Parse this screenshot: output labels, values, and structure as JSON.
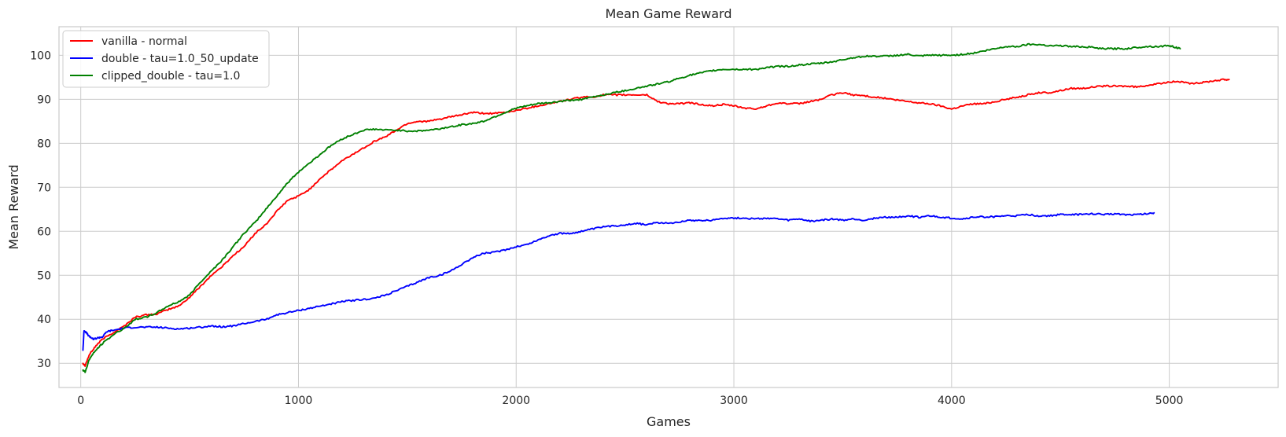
{
  "chart_data": {
    "type": "line",
    "title": "Mean Game Reward",
    "xlabel": "Games",
    "ylabel": "Mean Reward",
    "xlim": [
      -100,
      5500
    ],
    "ylim": [
      24.5,
      106.5
    ],
    "xticks": [
      0,
      1000,
      2000,
      3000,
      4000,
      5000
    ],
    "yticks": [
      30,
      40,
      50,
      60,
      70,
      80,
      90,
      100
    ],
    "grid": true,
    "legend_position": "top-left",
    "series": [
      {
        "name": "vanilla - normal",
        "color": "#ff0000",
        "points": [
          [
            10,
            30
          ],
          [
            20,
            29.5
          ],
          [
            40,
            32
          ],
          [
            70,
            34
          ],
          [
            100,
            35.5
          ],
          [
            150,
            37
          ],
          [
            200,
            38.5
          ],
          [
            250,
            40.5
          ],
          [
            300,
            41
          ],
          [
            350,
            41.2
          ],
          [
            400,
            42.2
          ],
          [
            450,
            43
          ],
          [
            500,
            45
          ],
          [
            550,
            47.5
          ],
          [
            600,
            50
          ],
          [
            650,
            52
          ],
          [
            700,
            54.5
          ],
          [
            750,
            56.5
          ],
          [
            800,
            59.5
          ],
          [
            850,
            61.5
          ],
          [
            900,
            64.5
          ],
          [
            950,
            67
          ],
          [
            1000,
            68
          ],
          [
            1050,
            69.5
          ],
          [
            1100,
            72
          ],
          [
            1150,
            74
          ],
          [
            1200,
            76
          ],
          [
            1250,
            77.5
          ],
          [
            1300,
            79
          ],
          [
            1350,
            80.5
          ],
          [
            1400,
            81.5
          ],
          [
            1450,
            83
          ],
          [
            1500,
            84.5
          ],
          [
            1550,
            85
          ],
          [
            1600,
            85
          ],
          [
            1650,
            85.5
          ],
          [
            1700,
            86
          ],
          [
            1750,
            86.5
          ],
          [
            1800,
            87
          ],
          [
            1850,
            86.8
          ],
          [
            1900,
            86.8
          ],
          [
            1950,
            87
          ],
          [
            2000,
            87.5
          ],
          [
            2050,
            88
          ],
          [
            2100,
            88.5
          ],
          [
            2150,
            89
          ],
          [
            2200,
            89.5
          ],
          [
            2250,
            90
          ],
          [
            2300,
            90.5
          ],
          [
            2350,
            90.5
          ],
          [
            2400,
            91
          ],
          [
            2450,
            91
          ],
          [
            2500,
            91
          ],
          [
            2550,
            91
          ],
          [
            2600,
            91
          ],
          [
            2650,
            89.5
          ],
          [
            2700,
            89
          ],
          [
            2750,
            89
          ],
          [
            2800,
            89.2
          ],
          [
            2850,
            88.8
          ],
          [
            2900,
            88.5
          ],
          [
            2950,
            88.8
          ],
          [
            3000,
            88.5
          ],
          [
            3050,
            88
          ],
          [
            3100,
            87.8
          ],
          [
            3150,
            88.5
          ],
          [
            3200,
            89.2
          ],
          [
            3250,
            89
          ],
          [
            3300,
            89
          ],
          [
            3350,
            89.5
          ],
          [
            3400,
            90
          ],
          [
            3450,
            91
          ],
          [
            3500,
            91.5
          ],
          [
            3550,
            91
          ],
          [
            3600,
            90.8
          ],
          [
            3650,
            90.5
          ],
          [
            3700,
            90.2
          ],
          [
            3750,
            89.8
          ],
          [
            3800,
            89.5
          ],
          [
            3850,
            89.2
          ],
          [
            3900,
            89
          ],
          [
            3950,
            88.5
          ],
          [
            4000,
            87.8
          ],
          [
            4050,
            88.5
          ],
          [
            4100,
            89
          ],
          [
            4150,
            89
          ],
          [
            4200,
            89.5
          ],
          [
            4250,
            90
          ],
          [
            4300,
            90.5
          ],
          [
            4350,
            91
          ],
          [
            4400,
            91.5
          ],
          [
            4450,
            91.5
          ],
          [
            4500,
            92
          ],
          [
            4550,
            92.5
          ],
          [
            4600,
            92.5
          ],
          [
            4650,
            92.8
          ],
          [
            4700,
            93
          ],
          [
            4750,
            93
          ],
          [
            4800,
            93
          ],
          [
            4850,
            92.8
          ],
          [
            4900,
            93.2
          ],
          [
            4950,
            93.5
          ],
          [
            5000,
            94
          ],
          [
            5050,
            94
          ],
          [
            5100,
            93.5
          ],
          [
            5150,
            93.8
          ],
          [
            5200,
            94.2
          ],
          [
            5250,
            94.5
          ],
          [
            5275,
            94.5
          ]
        ]
      },
      {
        "name": "double - tau=1.0_50_update",
        "color": "#0000ff",
        "points": [
          [
            10,
            33
          ],
          [
            15,
            37.5
          ],
          [
            25,
            37
          ],
          [
            40,
            36
          ],
          [
            60,
            35.5
          ],
          [
            80,
            35.8
          ],
          [
            100,
            36
          ],
          [
            120,
            37.2
          ],
          [
            150,
            37.5
          ],
          [
            200,
            38
          ],
          [
            250,
            38.2
          ],
          [
            300,
            38.2
          ],
          [
            350,
            38.2
          ],
          [
            400,
            38
          ],
          [
            450,
            37.8
          ],
          [
            500,
            38
          ],
          [
            550,
            38.2
          ],
          [
            600,
            38.5
          ],
          [
            650,
            38.3
          ],
          [
            700,
            38.5
          ],
          [
            750,
            39
          ],
          [
            800,
            39.5
          ],
          [
            850,
            40
          ],
          [
            900,
            41
          ],
          [
            950,
            41.5
          ],
          [
            1000,
            42
          ],
          [
            1050,
            42.5
          ],
          [
            1100,
            43
          ],
          [
            1150,
            43.5
          ],
          [
            1200,
            44
          ],
          [
            1250,
            44.3
          ],
          [
            1300,
            44.5
          ],
          [
            1350,
            44.8
          ],
          [
            1400,
            45.5
          ],
          [
            1450,
            46.5
          ],
          [
            1500,
            47.5
          ],
          [
            1550,
            48.5
          ],
          [
            1600,
            49.5
          ],
          [
            1650,
            50
          ],
          [
            1700,
            51
          ],
          [
            1750,
            52.5
          ],
          [
            1800,
            54
          ],
          [
            1850,
            55
          ],
          [
            1900,
            55.2
          ],
          [
            1950,
            55.8
          ],
          [
            2000,
            56.5
          ],
          [
            2050,
            57
          ],
          [
            2100,
            58
          ],
          [
            2150,
            59
          ],
          [
            2200,
            59.5
          ],
          [
            2250,
            59.5
          ],
          [
            2300,
            60
          ],
          [
            2350,
            60.5
          ],
          [
            2400,
            61
          ],
          [
            2450,
            61.2
          ],
          [
            2500,
            61.5
          ],
          [
            2550,
            61.8
          ],
          [
            2600,
            61.5
          ],
          [
            2650,
            62
          ],
          [
            2700,
            61.8
          ],
          [
            2750,
            62.2
          ],
          [
            2800,
            62.5
          ],
          [
            2850,
            62.5
          ],
          [
            2900,
            62.5
          ],
          [
            2950,
            63
          ],
          [
            3000,
            63
          ],
          [
            3050,
            63
          ],
          [
            3100,
            62.8
          ],
          [
            3150,
            63
          ],
          [
            3200,
            62.8
          ],
          [
            3250,
            62.5
          ],
          [
            3300,
            62.8
          ],
          [
            3350,
            62.3
          ],
          [
            3400,
            62.5
          ],
          [
            3450,
            62.8
          ],
          [
            3500,
            62.5
          ],
          [
            3550,
            62.8
          ],
          [
            3600,
            62.5
          ],
          [
            3650,
            63
          ],
          [
            3700,
            63.2
          ],
          [
            3750,
            63.2
          ],
          [
            3800,
            63.5
          ],
          [
            3850,
            63.2
          ],
          [
            3900,
            63.5
          ],
          [
            3950,
            63.2
          ],
          [
            4000,
            63
          ],
          [
            4050,
            62.8
          ],
          [
            4100,
            63.2
          ],
          [
            4150,
            63.3
          ],
          [
            4200,
            63.3
          ],
          [
            4250,
            63.5
          ],
          [
            4300,
            63.5
          ],
          [
            4350,
            63.8
          ],
          [
            4400,
            63.5
          ],
          [
            4450,
            63.5
          ],
          [
            4500,
            63.8
          ],
          [
            4550,
            63.8
          ],
          [
            4600,
            63.8
          ],
          [
            4650,
            64
          ],
          [
            4700,
            63.8
          ],
          [
            4750,
            64
          ],
          [
            4800,
            63.8
          ],
          [
            4850,
            63.8
          ],
          [
            4900,
            64
          ],
          [
            4930,
            64.2
          ]
        ]
      },
      {
        "name": "clipped_double - tau=1.0",
        "color": "#008000",
        "points": [
          [
            10,
            28.5
          ],
          [
            20,
            28
          ],
          [
            40,
            31
          ],
          [
            70,
            33
          ],
          [
            100,
            34.5
          ],
          [
            150,
            36.5
          ],
          [
            200,
            38
          ],
          [
            250,
            40
          ],
          [
            300,
            40.5
          ],
          [
            350,
            41.5
          ],
          [
            400,
            43
          ],
          [
            450,
            44
          ],
          [
            500,
            45.5
          ],
          [
            550,
            48.5
          ],
          [
            600,
            51
          ],
          [
            650,
            53.5
          ],
          [
            700,
            56.5
          ],
          [
            750,
            59.5
          ],
          [
            800,
            62
          ],
          [
            850,
            65
          ],
          [
            900,
            68
          ],
          [
            950,
            71
          ],
          [
            1000,
            73.5
          ],
          [
            1050,
            75.5
          ],
          [
            1100,
            77.5
          ],
          [
            1150,
            79.5
          ],
          [
            1200,
            81
          ],
          [
            1250,
            82
          ],
          [
            1300,
            83
          ],
          [
            1350,
            83.2
          ],
          [
            1400,
            83
          ],
          [
            1450,
            83
          ],
          [
            1500,
            82.8
          ],
          [
            1550,
            82.8
          ],
          [
            1600,
            83
          ],
          [
            1650,
            83.3
          ],
          [
            1700,
            83.8
          ],
          [
            1750,
            84.2
          ],
          [
            1800,
            84.5
          ],
          [
            1850,
            85
          ],
          [
            1900,
            86
          ],
          [
            1950,
            87
          ],
          [
            2000,
            88
          ],
          [
            2050,
            88.5
          ],
          [
            2100,
            89
          ],
          [
            2150,
            89.2
          ],
          [
            2200,
            89.5
          ],
          [
            2250,
            89.8
          ],
          [
            2300,
            90
          ],
          [
            2350,
            90.5
          ],
          [
            2400,
            91
          ],
          [
            2450,
            91.5
          ],
          [
            2500,
            92
          ],
          [
            2550,
            92.5
          ],
          [
            2600,
            93
          ],
          [
            2650,
            93.5
          ],
          [
            2700,
            94
          ],
          [
            2750,
            94.8
          ],
          [
            2800,
            95.5
          ],
          [
            2850,
            96
          ],
          [
            2900,
            96.5
          ],
          [
            2950,
            96.8
          ],
          [
            3000,
            96.8
          ],
          [
            3050,
            96.8
          ],
          [
            3100,
            96.8
          ],
          [
            3150,
            97.2
          ],
          [
            3200,
            97.5
          ],
          [
            3250,
            97.5
          ],
          [
            3300,
            97.8
          ],
          [
            3350,
            98
          ],
          [
            3400,
            98.2
          ],
          [
            3450,
            98.5
          ],
          [
            3500,
            99
          ],
          [
            3550,
            99.5
          ],
          [
            3600,
            99.8
          ],
          [
            3650,
            99.8
          ],
          [
            3700,
            99.8
          ],
          [
            3750,
            100
          ],
          [
            3800,
            100.2
          ],
          [
            3850,
            99.8
          ],
          [
            3900,
            100
          ],
          [
            3950,
            100
          ],
          [
            4000,
            100
          ],
          [
            4050,
            100.2
          ],
          [
            4100,
            100.5
          ],
          [
            4150,
            101
          ],
          [
            4200,
            101.5
          ],
          [
            4250,
            102
          ],
          [
            4300,
            102
          ],
          [
            4350,
            102.5
          ],
          [
            4400,
            102.5
          ],
          [
            4450,
            102.2
          ],
          [
            4500,
            102.2
          ],
          [
            4550,
            102
          ],
          [
            4600,
            102
          ],
          [
            4650,
            101.8
          ],
          [
            4700,
            101.5
          ],
          [
            4750,
            101.5
          ],
          [
            4800,
            101.5
          ],
          [
            4850,
            101.8
          ],
          [
            4900,
            102
          ],
          [
            4950,
            102
          ],
          [
            5000,
            102.2
          ],
          [
            5030,
            101.8
          ],
          [
            5050,
            101.5
          ]
        ]
      }
    ]
  }
}
